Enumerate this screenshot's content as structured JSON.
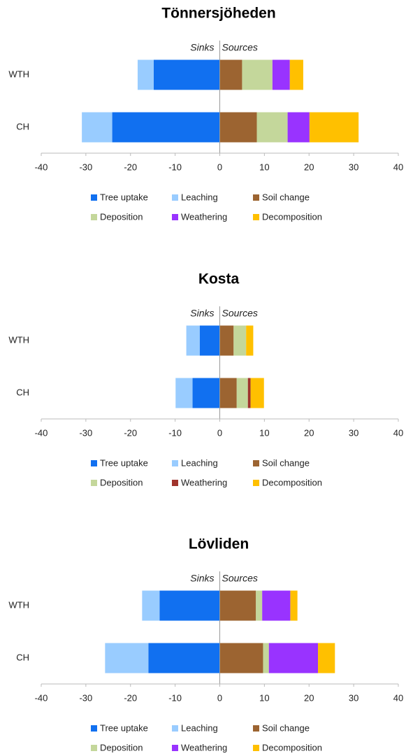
{
  "chart_data": {
    "charts": [
      {
        "type": "bar",
        "orientation": "horizontal",
        "stacked": true,
        "title": "Tönnersjöheden",
        "annotations": [
          "Sinks",
          "Sources"
        ],
        "categories": [
          "WTH",
          "CH"
        ],
        "xlim": [
          -40,
          40
        ],
        "xticks": [
          -40,
          -30,
          -20,
          -10,
          0,
          10,
          20,
          30,
          40
        ],
        "legend": "bottom",
        "series": [
          {
            "name": "Tree uptake",
            "color": "#1170f0",
            "values": [
              -14.8,
              -24.1
            ]
          },
          {
            "name": "Leaching",
            "color": "#99ccff",
            "values": [
              -3.6,
              -6.8
            ]
          },
          {
            "name": "Soil change",
            "color": "#9c6431",
            "values": [
              5.0,
              8.3
            ]
          },
          {
            "name": "Deposition",
            "color": "#c4d79b",
            "values": [
              6.8,
              6.9
            ]
          },
          {
            "name": "Weathering",
            "color": "#9933ff",
            "values": [
              3.9,
              4.9
            ]
          },
          {
            "name": "Decomposition",
            "color": "#ffc000",
            "values": [
              3.0,
              11.0
            ]
          }
        ]
      },
      {
        "type": "bar",
        "orientation": "horizontal",
        "stacked": true,
        "title": "Kosta",
        "annotations": [
          "Sinks",
          "Sources"
        ],
        "categories": [
          "WTH",
          "CH"
        ],
        "xlim": [
          -40,
          40
        ],
        "xticks": [
          -40,
          -30,
          -20,
          -10,
          0,
          10,
          20,
          30,
          40
        ],
        "legend": "bottom",
        "series": [
          {
            "name": "Tree uptake",
            "color": "#1170f0",
            "values": [
              -4.5,
              -6.1
            ]
          },
          {
            "name": "Leaching",
            "color": "#99ccff",
            "values": [
              -3.0,
              -3.8
            ]
          },
          {
            "name": "Soil change",
            "color": "#9c6431",
            "values": [
              3.1,
              3.8
            ]
          },
          {
            "name": "Deposition",
            "color": "#c4d79b",
            "values": [
              2.8,
              2.5
            ]
          },
          {
            "name": "Weathering",
            "color": "#a0342c",
            "values": [
              0,
              0.6
            ]
          },
          {
            "name": "Decomposition",
            "color": "#ffc000",
            "values": [
              1.6,
              3.0
            ]
          }
        ]
      },
      {
        "type": "bar",
        "orientation": "horizontal",
        "stacked": true,
        "title": "Lövliden",
        "annotations": [
          "Sinks",
          "Sources"
        ],
        "categories": [
          "WTH",
          "CH"
        ],
        "xlim": [
          -40,
          40
        ],
        "xticks": [
          -40,
          -30,
          -20,
          -10,
          0,
          10,
          20,
          30,
          40
        ],
        "legend": "bottom",
        "series": [
          {
            "name": "Tree uptake",
            "color": "#1170f0",
            "values": [
              -13.5,
              -16.0
            ]
          },
          {
            "name": "Leaching",
            "color": "#99ccff",
            "values": [
              -3.9,
              -9.7
            ]
          },
          {
            "name": "Soil change",
            "color": "#9c6431",
            "values": [
              8.1,
              9.7
            ]
          },
          {
            "name": "Deposition",
            "color": "#c4d79b",
            "values": [
              1.4,
              1.3
            ]
          },
          {
            "name": "Weathering",
            "color": "#9933ff",
            "values": [
              6.3,
              11.0
            ]
          },
          {
            "name": "Decomposition",
            "color": "#ffc000",
            "values": [
              1.6,
              3.8
            ]
          }
        ]
      }
    ]
  }
}
